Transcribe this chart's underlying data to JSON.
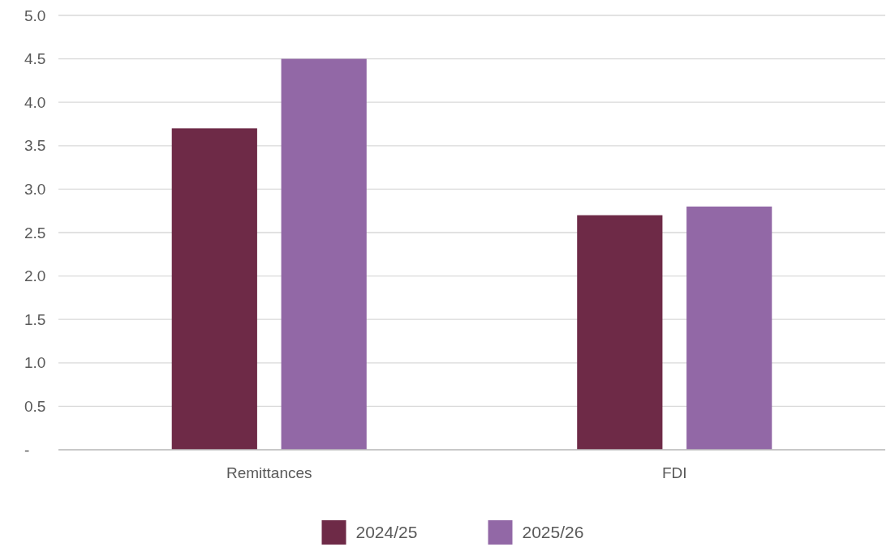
{
  "chart_data": {
    "type": "bar",
    "categories": [
      "Remittances",
      "FDI"
    ],
    "series": [
      {
        "name": "2024/25",
        "color": "#6e2a47",
        "values": [
          3.7,
          2.7
        ]
      },
      {
        "name": "2025/26",
        "color": "#9268a6",
        "values": [
          4.5,
          2.8
        ]
      }
    ],
    "ylim": [
      0,
      5
    ],
    "yticks": [
      {
        "value": 0,
        "label": "-"
      },
      {
        "value": 0.5,
        "label": "0.5"
      },
      {
        "value": 1,
        "label": "1.0"
      },
      {
        "value": 1.5,
        "label": "1.5"
      },
      {
        "value": 2,
        "label": "2.0"
      },
      {
        "value": 2.5,
        "label": "2.5"
      },
      {
        "value": 3,
        "label": "3.0"
      },
      {
        "value": 3.5,
        "label": "3.5"
      },
      {
        "value": 4,
        "label": "4.0"
      },
      {
        "value": 4.5,
        "label": "4.5"
      },
      {
        "value": 5,
        "label": "5.0"
      }
    ],
    "grid": "y",
    "legend": "bottom"
  }
}
